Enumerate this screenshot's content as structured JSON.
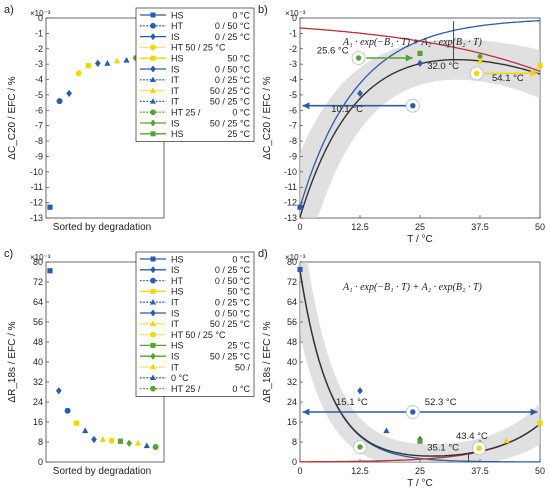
{
  "colors": {
    "blue": "#2a5ca8",
    "green": "#55a230",
    "yellow": "#f2d600",
    "red": "#c0303a",
    "dark": "#333333",
    "band": "#d6d6d6"
  },
  "panels": {
    "a": {
      "label": "a)",
      "exponent": "×10⁻³",
      "ylabel": "ΔC_C20 / EFC / %",
      "xlabel": "Sorted by degradation"
    },
    "b": {
      "label": "b)",
      "exponent": "×10⁻³",
      "ylabel": "ΔC_C20 / EFC / %",
      "xlabel": "T  /  °C",
      "formula": "A₁ · exp(−B₁ · T) + A₂ · exp(B₂ · T)",
      "annotations": [
        "10.1 °C",
        "25.6 °C",
        "32.0 °C",
        "54.1 °C"
      ]
    },
    "c": {
      "label": "c)",
      "exponent": "×10⁻³",
      "ylabel": "ΔR_18s / EFC / %",
      "xlabel": "Sorted by degradation"
    },
    "d": {
      "label": "d)",
      "exponent": "×10⁻³",
      "ylabel": "ΔR_18s / EFC / %",
      "xlabel": "T  /  °C",
      "formula": "A₁ · exp(−B₁ · T) + A₂ · exp(B₂ · T)",
      "annotations": [
        "15.1 °C",
        "52.3 °C",
        "43.4 °C",
        "35.1 °C"
      ]
    }
  },
  "legend_top": [
    {
      "n": "HS",
      "t": "0 °C",
      "c": "blue",
      "line": "solid",
      "m": "square"
    },
    {
      "n": "HT",
      "t": "0 / 50 °C",
      "c": "blue",
      "line": "dotted",
      "m": "circle"
    },
    {
      "n": "IS",
      "t": "0 / 25 °C",
      "c": "blue",
      "line": "solid",
      "m": "diamond"
    },
    {
      "n": "HT 50 / 25 °C",
      "t": "",
      "c": "yellow",
      "line": "dotted",
      "m": "circle"
    },
    {
      "n": "HS",
      "t": "50 °C",
      "c": "yellow",
      "line": "solid",
      "m": "square"
    },
    {
      "n": "IS",
      "t": "0 / 50 °C",
      "c": "blue",
      "line": "solid",
      "m": "diamond"
    },
    {
      "n": "IT",
      "t": "0 / 25 °C",
      "c": "blue",
      "line": "dotted",
      "m": "triangle"
    },
    {
      "n": "IT",
      "t": "50 / 25 °C",
      "c": "yellow",
      "line": "dotted",
      "m": "triangle"
    },
    {
      "n": "IT",
      "t": "50 / 25 °C",
      "c": "blue",
      "line": "dotted",
      "m": "triangle"
    },
    {
      "n": "HT 25 /",
      "t": "0 °C",
      "c": "green",
      "line": "dotted",
      "m": "circle"
    },
    {
      "n": "IS",
      "t": "50 / 25 °C",
      "c": "green",
      "line": "solid",
      "m": "diamond"
    },
    {
      "n": "HS",
      "t": "25 °C",
      "c": "green",
      "line": "solid",
      "m": "square"
    }
  ],
  "legend_bottom": [
    {
      "n": "HS",
      "t": "0 °C",
      "c": "blue",
      "line": "solid",
      "m": "square"
    },
    {
      "n": "IS",
      "t": "0 / 25 °C",
      "c": "blue",
      "line": "solid",
      "m": "diamond"
    },
    {
      "n": "HT",
      "t": "0 / 50 °C",
      "c": "blue",
      "line": "dotted",
      "m": "circle"
    },
    {
      "n": "HS",
      "t": "50 °C",
      "c": "yellow",
      "line": "solid",
      "m": "square"
    },
    {
      "n": "IT",
      "t": "0 / 25 °C",
      "c": "blue",
      "line": "dotted",
      "m": "triangle"
    },
    {
      "n": "IS",
      "t": "0 / 50 °C",
      "c": "blue",
      "line": "solid",
      "m": "diamond"
    },
    {
      "n": "IT",
      "t": "50 / 25 °C",
      "c": "yellow",
      "line": "dotted",
      "m": "triangle"
    },
    {
      "n": "HT 50 / 25 °C",
      "t": "",
      "c": "yellow",
      "line": "dotted",
      "m": "circle"
    },
    {
      "n": "HS",
      "t": "25 °C",
      "c": "green",
      "line": "solid",
      "m": "square"
    },
    {
      "n": "IS",
      "t": "50 / 25 °C",
      "c": "green",
      "line": "solid",
      "m": "diamond"
    },
    {
      "n": "IT",
      "t": "50 /",
      "c": "yellow",
      "line": "dotted",
      "m": "triangle"
    },
    {
      "n": "0 °C",
      "t": "",
      "c": "blue",
      "line": "dotted",
      "m": "triangle"
    },
    {
      "n": "HT 25 /",
      "t": "0 °C",
      "c": "green",
      "line": "dotted",
      "m": "circle"
    }
  ],
  "chart_data": [
    {
      "panel": "a",
      "type": "scatter",
      "ylim": [
        -13,
        0
      ],
      "yticks": [
        -13,
        -12,
        -11,
        -10,
        -9,
        -8,
        -7,
        -6,
        -5,
        -4,
        -3,
        -2,
        -1,
        0
      ],
      "x": [
        1,
        2,
        3,
        4,
        5,
        6,
        7,
        8,
        9,
        10,
        11,
        12
      ],
      "y": [
        -12.3,
        -5.4,
        -4.9,
        -3.6,
        -3.1,
        -2.95,
        -2.95,
        -2.8,
        -2.75,
        -2.6,
        -2.35,
        -2.3
      ],
      "markers": [
        "square:blue",
        "circle:blue",
        "diamond:blue",
        "circle:yellow",
        "square:yellow",
        "diamond:blue",
        "triangle:blue",
        "triangle:yellow",
        "triangle:blue",
        "circle:green",
        "diamond:green",
        "square:green"
      ]
    },
    {
      "panel": "b",
      "type": "scatter",
      "xlim": [
        0,
        50
      ],
      "ylim": [
        -13,
        0
      ],
      "xticks": [
        0,
        12.5,
        25,
        37.5,
        50
      ],
      "yticks": [
        -13,
        -12,
        -11,
        -10,
        -9,
        -8,
        -7,
        -6,
        -5,
        -4,
        -3,
        -2,
        -1,
        0
      ],
      "points": [
        [
          0,
          -12.3,
          "square:blue"
        ],
        [
          12.5,
          -4.9,
          "diamond:blue"
        ],
        [
          25,
          -2.95,
          "diamond:blue"
        ],
        [
          25,
          -2.3,
          "square:green"
        ],
        [
          37.5,
          -2.5,
          "diamond:green"
        ],
        [
          37.5,
          -2.8,
          "triangle:yellow"
        ],
        [
          50,
          -3.1,
          "square:yellow"
        ]
      ],
      "series": [
        {
          "color": "blue",
          "A": 12.3,
          "B": 0.085,
          "kind": "decay"
        },
        {
          "color": "red",
          "A": 0.65,
          "B": 0.0335,
          "kind": "growth"
        },
        {
          "color": "dark",
          "kind": "sum"
        }
      ]
    },
    {
      "panel": "c",
      "type": "scatter",
      "ylim": [
        0,
        80
      ],
      "yticks": [
        0,
        8,
        16,
        24,
        32,
        40,
        48,
        56,
        64,
        72,
        80
      ],
      "x": [
        1,
        2,
        3,
        4,
        5,
        6,
        7,
        8,
        9,
        10,
        11,
        12,
        13
      ],
      "y": [
        76.5,
        28.5,
        20.5,
        15.5,
        12.5,
        9,
        9,
        8.5,
        8.3,
        7.5,
        7.5,
        6.5,
        6
      ],
      "markers": [
        "square:blue",
        "diamond:blue",
        "circle:blue",
        "square:yellow",
        "triangle:blue",
        "diamond:blue",
        "triangle:yellow",
        "circle:yellow",
        "square:green",
        "diamond:green",
        "triangle:yellow",
        "triangle:blue",
        "circle:green"
      ]
    },
    {
      "panel": "d",
      "type": "scatter",
      "xlim": [
        0,
        50
      ],
      "ylim": [
        0,
        80
      ],
      "xticks": [
        0,
        12.5,
        25,
        37.5,
        50
      ],
      "yticks": [
        0,
        8,
        16,
        24,
        32,
        40,
        48,
        56,
        64,
        72,
        80
      ],
      "points": [
        [
          0,
          77,
          "square:blue"
        ],
        [
          12.5,
          28.5,
          "diamond:blue"
        ],
        [
          18,
          12.5,
          "triangle:blue"
        ],
        [
          25,
          9,
          "diamond:blue"
        ],
        [
          25,
          8.3,
          "square:green"
        ],
        [
          37.5,
          7.5,
          "diamond:green"
        ],
        [
          37.5,
          6.5,
          "triangle:yellow"
        ],
        [
          43,
          8.5,
          "triangle:yellow"
        ],
        [
          50,
          15.5,
          "square:yellow"
        ]
      ],
      "series": [
        {
          "color": "blue",
          "A": 76.5,
          "B": 0.16,
          "kind": "decay"
        },
        {
          "color": "red",
          "A": 0.08,
          "B": 0.105,
          "kind": "growth"
        },
        {
          "color": "dark",
          "kind": "sum"
        }
      ]
    }
  ]
}
